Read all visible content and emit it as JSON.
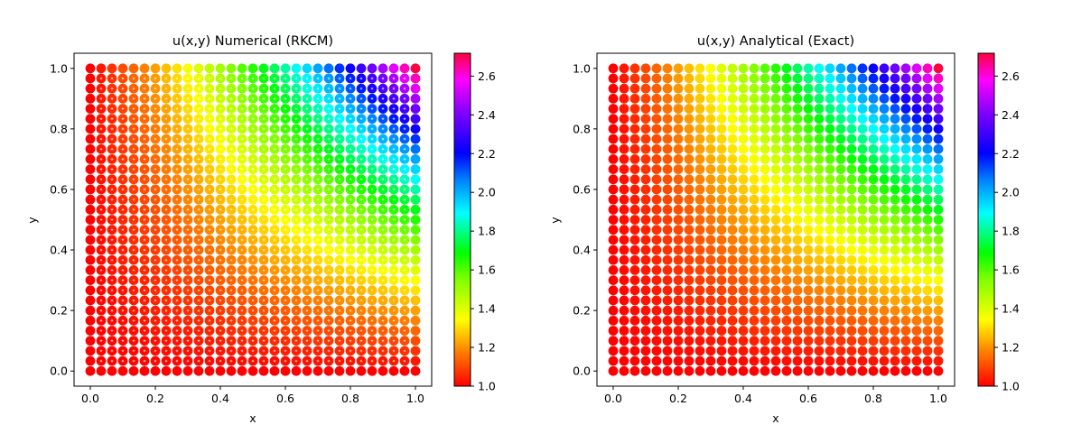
{
  "chart_data": [
    {
      "type": "scatter",
      "title": "u(x,y) Numerical (RKCM)",
      "xlabel": "x",
      "ylabel": "y",
      "xlim": [
        -0.05,
        1.05
      ],
      "ylim": [
        -0.05,
        1.05
      ],
      "xticks": [
        "0.0",
        "0.2",
        "0.4",
        "0.6",
        "0.8",
        "1.0"
      ],
      "yticks": [
        "0.0",
        "0.2",
        "0.4",
        "0.6",
        "0.8",
        "1.0"
      ],
      "grid": false,
      "x": "31 evenly spaced values from 0.0 to 1.0",
      "y": "31 evenly spaced values from 0.0 to 1.0",
      "value_field": "u(x,y) ≈ exp(x·y)",
      "colormap": "gist_rainbow_r",
      "colorbar": {
        "min": 1.0,
        "max": 2.718,
        "ticks": [
          "1.0",
          "1.2",
          "1.4",
          "1.6",
          "1.8",
          "2.0",
          "2.2",
          "2.4",
          "2.6"
        ]
      },
      "marker_color_note": "small white crosshair highlights on interior points"
    },
    {
      "type": "scatter",
      "title": "u(x,y) Analytical (Exact)",
      "xlabel": "x",
      "ylabel": "y",
      "xlim": [
        -0.05,
        1.05
      ],
      "ylim": [
        -0.05,
        1.05
      ],
      "xticks": [
        "0.0",
        "0.2",
        "0.4",
        "0.6",
        "0.8",
        "1.0"
      ],
      "yticks": [
        "0.0",
        "0.2",
        "0.4",
        "0.6",
        "0.8",
        "1.0"
      ],
      "grid": false,
      "x": "31 evenly spaced values from 0.0 to 1.0",
      "y": "31 evenly spaced values from 0.0 to 1.0",
      "value_field": "u(x,y) = exp(x·y)",
      "colormap": "gist_rainbow_r",
      "colorbar": {
        "min": 1.0,
        "max": 2.718,
        "ticks": [
          "1.0",
          "1.2",
          "1.4",
          "1.6",
          "1.8",
          "2.0",
          "2.2",
          "2.4",
          "2.6"
        ]
      }
    }
  ]
}
